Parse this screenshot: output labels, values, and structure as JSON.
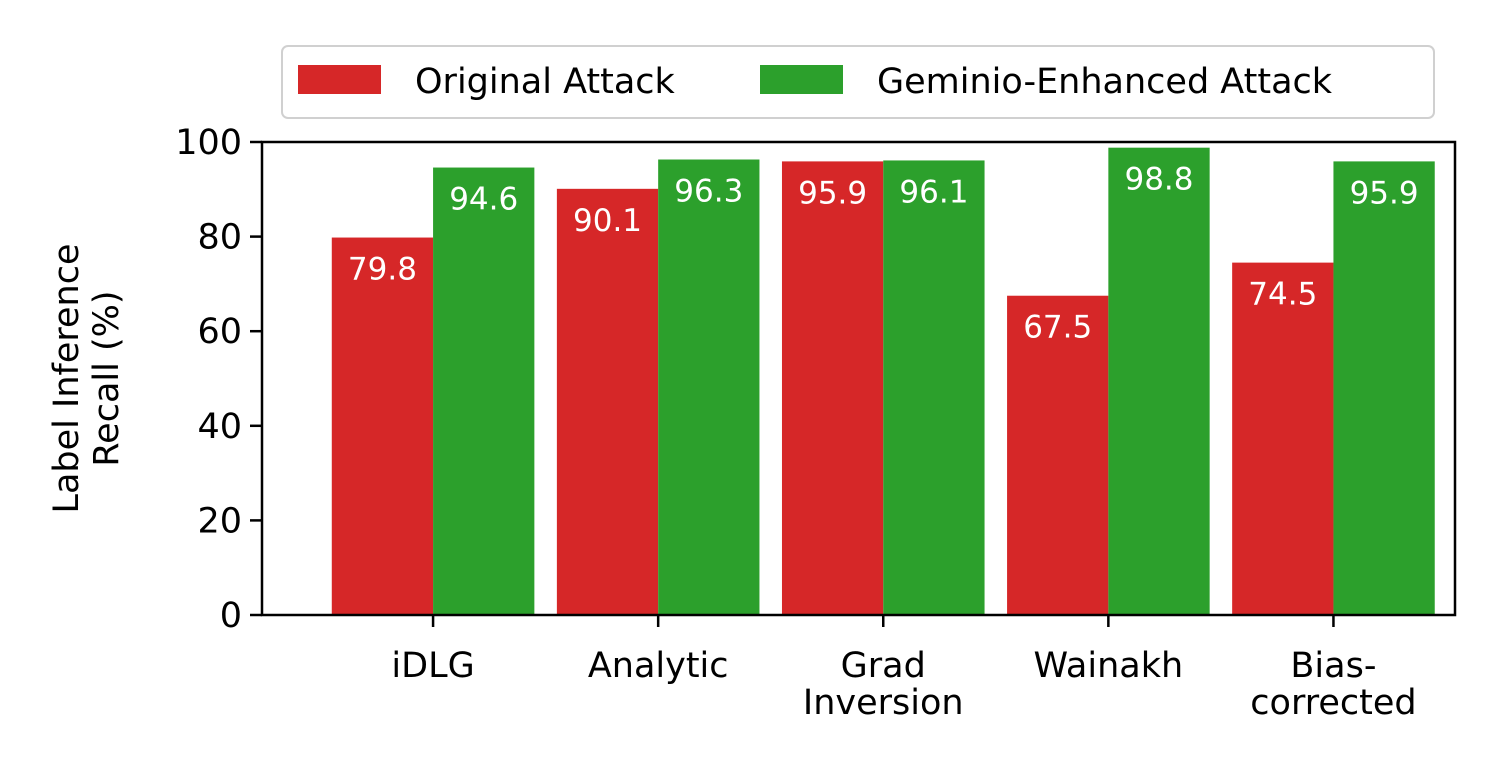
{
  "chart_data": {
    "type": "bar",
    "categories": [
      [
        "iDLG"
      ],
      [
        "Analytic"
      ],
      [
        "Grad",
        "Inversion"
      ],
      [
        "Wainakh"
      ],
      [
        "Bias-",
        "corrected"
      ]
    ],
    "series": [
      {
        "name": "Original Attack",
        "color": "#d62728",
        "values": [
          79.8,
          90.1,
          95.9,
          67.5,
          74.5
        ]
      },
      {
        "name": "Geminio-Enhanced Attack",
        "color": "#2ca02c",
        "values": [
          94.6,
          96.3,
          96.1,
          98.8,
          95.9
        ]
      }
    ],
    "ylabel": [
      "Label Inference",
      "Recall (%)"
    ],
    "xlabel": "",
    "ylim": [
      0,
      100
    ],
    "yticks": [
      0,
      20,
      40,
      60,
      80,
      100
    ],
    "legend_position": "top",
    "grid": false,
    "data_labels": true
  }
}
